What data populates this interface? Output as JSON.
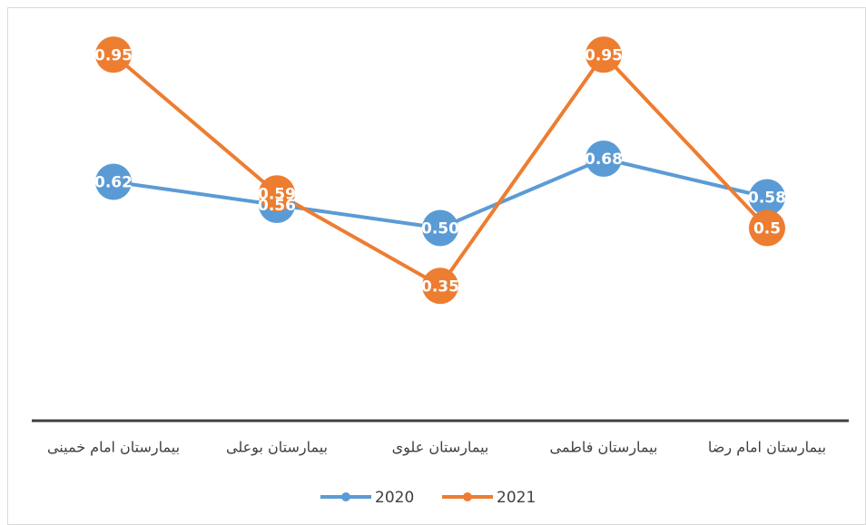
{
  "chart_data": {
    "type": "line",
    "categories": [
      "بیمارستان امام خمینی",
      "بیمارستان بوعلی",
      "بیمارستان علوی",
      "بیمارستان فاطمی",
      "بیمارستان امام رضا"
    ],
    "series": [
      {
        "name": "2020",
        "color": "#5b9bd5",
        "values": [
          0.62,
          0.56,
          0.5,
          0.68,
          0.58
        ],
        "value_labels": [
          "0.62",
          "0.56",
          "0.50",
          "0.68",
          "0.58"
        ]
      },
      {
        "name": "2021",
        "color": "#ed7d31",
        "values": [
          0.95,
          0.59,
          0.35,
          0.95,
          0.5
        ]
      }
    ],
    "ylim": [
      0,
      1
    ],
    "legend": "bottom"
  }
}
